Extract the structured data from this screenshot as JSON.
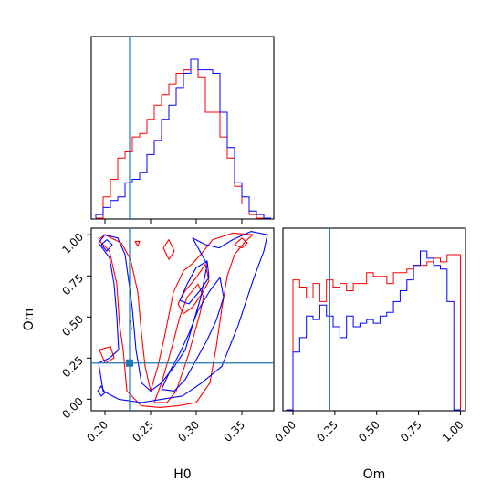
{
  "chart_data": {
    "type": "corner",
    "parameters": [
      "H0",
      "Om"
    ],
    "truth": {
      "H0": 0.227,
      "Om": 0.22
    },
    "colors": {
      "series_a": "#ff0000",
      "series_b": "#0000ff",
      "truth": "#1f77b4"
    },
    "panels": {
      "hist_H0": {
        "type": "step-histogram",
        "xlim": [
          0.185,
          0.385
        ],
        "bin_edges": [
          0.19,
          0.198,
          0.206,
          0.214,
          0.222,
          0.23,
          0.238,
          0.246,
          0.254,
          0.262,
          0.27,
          0.278,
          0.286,
          0.294,
          0.302,
          0.31,
          0.318,
          0.326,
          0.334,
          0.342,
          0.35,
          0.358,
          0.366,
          0.374,
          0.382
        ],
        "series": [
          {
            "values": [
              0,
              12,
              22,
              34,
              38,
              46,
              48,
              56,
              64,
              70,
              76,
              82,
              84,
              90,
              80,
              60,
              60,
              46,
              34,
              18,
              8,
              2,
              0,
              0
            ]
          },
          {
            "values": [
              2,
              6,
              10,
              12,
              20,
              22,
              26,
              36,
              44,
              56,
              64,
              74,
              82,
              90,
              84,
              84,
              82,
              60,
              40,
              20,
              12,
              4,
              2,
              0
            ]
          }
        ]
      },
      "joint_H0_Om": {
        "type": "contour",
        "xlim": [
          0.185,
          0.385
        ],
        "ylim": [
          -0.07,
          1.04
        ],
        "xticks": [
          "0.20",
          "0.25",
          "0.30",
          "0.35"
        ],
        "yticks": [
          "0.00",
          "0.25",
          "0.50",
          "0.75",
          "1.00"
        ],
        "xlabel": "H0",
        "ylabel": "Om",
        "series": [
          {
            "contours": [
              [
                [
                  0.193,
                  0.97
                ],
                [
                  0.205,
                  0.9
                ],
                [
                  0.213,
                  0.7
                ],
                [
                  0.216,
                  0.45
                ],
                [
                  0.22,
                  0.3
                ],
                [
                  0.224,
                  0.05
                ],
                [
                  0.24,
                  -0.04
                ],
                [
                  0.26,
                  -0.05
                ],
                [
                  0.28,
                  -0.04
                ],
                [
                  0.3,
                  -0.02
                ],
                [
                  0.315,
                  0.1
                ],
                [
                  0.322,
                  0.32
                ],
                [
                  0.328,
                  0.55
                ],
                [
                  0.334,
                  0.75
                ],
                [
                  0.342,
                  0.88
                ],
                [
                  0.354,
                  0.96
                ],
                [
                  0.362,
                  1.0
                ],
                [
                  0.34,
                  1.01
                ],
                [
                  0.318,
                  0.97
                ],
                [
                  0.305,
                  0.88
                ],
                [
                  0.295,
                  0.82
                ],
                [
                  0.286,
                  0.78
                ],
                [
                  0.275,
                  0.65
                ],
                [
                  0.266,
                  0.4
                ],
                [
                  0.258,
                  0.2
                ],
                [
                  0.25,
                  0.05
                ],
                [
                  0.244,
                  0.2
                ],
                [
                  0.24,
                  0.4
                ],
                [
                  0.236,
                  0.65
                ],
                [
                  0.228,
                  0.85
                ],
                [
                  0.218,
                  0.95
                ],
                [
                  0.2,
                  1.0
                ],
                [
                  0.193,
                  0.97
                ]
              ],
              [
                [
                  0.254,
                  -0.02
                ],
                [
                  0.262,
                  0.1
                ],
                [
                  0.27,
                  0.25
                ],
                [
                  0.275,
                  0.35
                ],
                [
                  0.282,
                  0.5
                ],
                [
                  0.29,
                  0.62
                ],
                [
                  0.302,
                  0.7
                ],
                [
                  0.308,
                  0.62
                ],
                [
                  0.304,
                  0.52
                ],
                [
                  0.298,
                  0.4
                ],
                [
                  0.292,
                  0.28
                ],
                [
                  0.286,
                  0.18
                ],
                [
                  0.278,
                  0.05
                ],
                [
                  0.268,
                  -0.02
                ],
                [
                  0.254,
                  -0.02
                ]
              ],
              [
                [
                  0.28,
                  0.58
                ],
                [
                  0.288,
                  0.66
                ],
                [
                  0.3,
                  0.74
                ],
                [
                  0.31,
                  0.82
                ],
                [
                  0.314,
                  0.72
                ],
                [
                  0.306,
                  0.64
                ],
                [
                  0.296,
                  0.56
                ],
                [
                  0.286,
                  0.52
                ],
                [
                  0.28,
                  0.58
                ]
              ],
              [
                [
                  0.264,
                  0.92
                ],
                [
                  0.27,
                  0.85
                ],
                [
                  0.276,
                  0.9
                ],
                [
                  0.27,
                  0.97
                ],
                [
                  0.264,
                  0.92
                ]
              ],
              [
                [
                  0.342,
                  0.94
                ],
                [
                  0.35,
                  0.92
                ],
                [
                  0.356,
                  0.95
                ],
                [
                  0.35,
                  0.98
                ],
                [
                  0.342,
                  0.94
                ]
              ],
              [
                [
                  0.194,
                  0.3
                ],
                [
                  0.206,
                  0.32
                ],
                [
                  0.21,
                  0.25
                ],
                [
                  0.2,
                  0.22
                ],
                [
                  0.194,
                  0.3
                ]
              ],
              [
                [
                  0.233,
                  0.96
                ],
                [
                  0.236,
                  0.93
                ],
                [
                  0.238,
                  0.96
                ],
                [
                  0.233,
                  0.96
                ]
              ]
            ]
          },
          {
            "contours": [
              [
                [
                  0.193,
                  0.95
                ],
                [
                  0.205,
                  0.86
                ],
                [
                  0.21,
                  0.7
                ],
                [
                  0.213,
                  0.5
                ],
                [
                  0.215,
                  0.3
                ],
                [
                  0.205,
                  0.25
                ],
                [
                  0.193,
                  0.22
                ],
                [
                  0.198,
                  0.05
                ],
                [
                  0.215,
                  0.0
                ],
                [
                  0.24,
                  -0.02
                ],
                [
                  0.262,
                  0.0
                ],
                [
                  0.285,
                  0.02
                ],
                [
                  0.306,
                  0.1
                ],
                [
                  0.328,
                  0.2
                ],
                [
                  0.346,
                  0.45
                ],
                [
                  0.362,
                  0.72
                ],
                [
                  0.374,
                  0.9
                ],
                [
                  0.378,
                  1.0
                ],
                [
                  0.36,
                  1.02
                ],
                [
                  0.34,
                  0.97
                ],
                [
                  0.325,
                  0.92
                ],
                [
                  0.31,
                  0.94
                ],
                [
                  0.296,
                  0.98
                ],
                [
                  0.312,
                  0.82
                ],
                [
                  0.305,
                  0.62
                ],
                [
                  0.296,
                  0.45
                ],
                [
                  0.288,
                  0.3
                ],
                [
                  0.276,
                  0.2
                ],
                [
                  0.262,
                  0.1
                ],
                [
                  0.25,
                  0.05
                ],
                [
                  0.24,
                  0.1
                ],
                [
                  0.234,
                  0.3
                ],
                [
                  0.23,
                  0.55
                ],
                [
                  0.226,
                  0.72
                ],
                [
                  0.222,
                  0.88
                ],
                [
                  0.214,
                  0.98
                ],
                [
                  0.2,
                  1.0
                ],
                [
                  0.193,
                  0.95
                ]
              ],
              [
                [
                  0.262,
                  0.06
                ],
                [
                  0.272,
                  0.18
                ],
                [
                  0.282,
                  0.28
                ],
                [
                  0.292,
                  0.4
                ],
                [
                  0.302,
                  0.54
                ],
                [
                  0.315,
                  0.66
                ],
                [
                  0.326,
                  0.74
                ],
                [
                  0.33,
                  0.62
                ],
                [
                  0.322,
                  0.48
                ],
                [
                  0.312,
                  0.36
                ],
                [
                  0.3,
                  0.24
                ],
                [
                  0.288,
                  0.12
                ],
                [
                  0.276,
                  0.05
                ],
                [
                  0.262,
                  0.06
                ]
              ],
              [
                [
                  0.282,
                  0.6
                ],
                [
                  0.29,
                  0.7
                ],
                [
                  0.3,
                  0.8
                ],
                [
                  0.312,
                  0.84
                ],
                [
                  0.314,
                  0.74
                ],
                [
                  0.304,
                  0.66
                ],
                [
                  0.292,
                  0.58
                ],
                [
                  0.282,
                  0.6
                ]
              ],
              [
                [
                  0.228,
                  0.48
                ],
                [
                  0.229,
                  0.42
                ]
              ],
              [
                [
                  0.192,
                  0.05
                ],
                [
                  0.196,
                  0.08
                ],
                [
                  0.2,
                  0.04
                ],
                [
                  0.196,
                  0.02
                ],
                [
                  0.192,
                  0.05
                ]
              ],
              [
                [
                  0.196,
                  0.94
                ],
                [
                  0.202,
                  0.9
                ],
                [
                  0.208,
                  0.94
                ],
                [
                  0.202,
                  0.97
                ],
                [
                  0.196,
                  0.94
                ]
              ]
            ]
          }
        ]
      },
      "hist_Om": {
        "type": "step-histogram",
        "xlim": [
          -0.06,
          1.03
        ],
        "bin_edges": [
          -0.04,
          0.0,
          0.04,
          0.08,
          0.12,
          0.16,
          0.2,
          0.24,
          0.28,
          0.32,
          0.36,
          0.4,
          0.44,
          0.48,
          0.52,
          0.56,
          0.6,
          0.64,
          0.68,
          0.72,
          0.76,
          0.8,
          0.84,
          0.88,
          0.92,
          0.96,
          1.0
        ],
        "xticks": [
          "0.00",
          "0.25",
          "0.50",
          "0.75",
          "1.00"
        ],
        "xlabel": "Om",
        "series": [
          {
            "values": [
              0,
              72,
              68,
              62,
              70,
              60,
              72,
              68,
              70,
              66,
              70,
              70,
              76,
              74,
              74,
              70,
              76,
              76,
              78,
              80,
              80,
              82,
              84,
              82,
              86,
              86
            ]
          },
          {
            "values": [
              0,
              32,
              40,
              52,
              50,
              58,
              52,
              46,
              40,
              52,
              46,
              48,
              50,
              48,
              52,
              54,
              60,
              66,
              72,
              80,
              88,
              84,
              80,
              78,
              60,
              0
            ]
          }
        ]
      }
    }
  }
}
